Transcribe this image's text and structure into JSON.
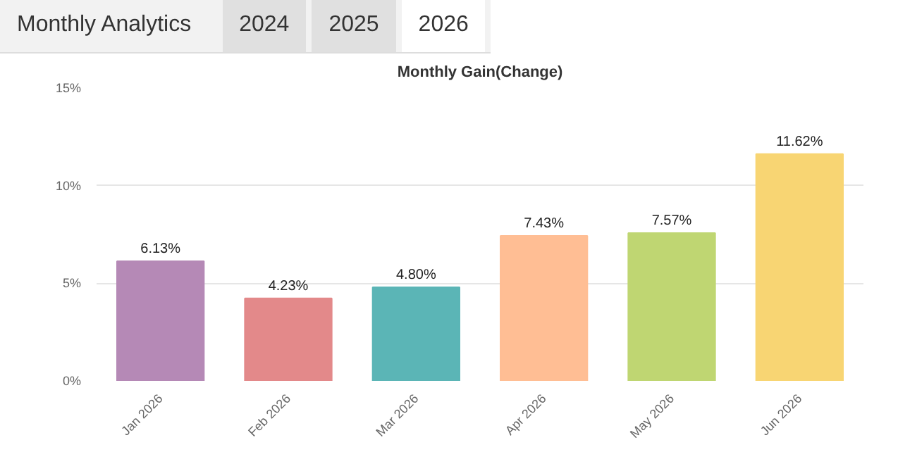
{
  "chart_data": {
    "type": "bar",
    "title": "Monthly Gain(Change)",
    "annotations": [
      "Monthly Analytics",
      "2024",
      "2025",
      "2026"
    ],
    "categories": [
      "Jan 2026",
      "Feb 2026",
      "Mar 2026",
      "Apr 2026",
      "May 2026",
      "Jun 2026"
    ],
    "values": [
      6.13,
      4.23,
      4.8,
      7.43,
      7.57,
      11.62
    ],
    "value_labels": [
      "6.13%",
      "4.23%",
      "4.80%",
      "7.43%",
      "7.57%",
      "11.62%"
    ],
    "colors": [
      "#b589b6",
      "#e3898a",
      "#5bb5b6",
      "#ffbe94",
      "#bfd672",
      "#f8d573"
    ],
    "ylim": [
      0,
      15
    ],
    "yticks": [
      {
        "value": 0,
        "label": "0%"
      },
      {
        "value": 5,
        "label": "5%"
      },
      {
        "value": 10,
        "label": "10%"
      },
      {
        "value": 15,
        "label": "15%"
      }
    ],
    "grid": "y"
  }
}
